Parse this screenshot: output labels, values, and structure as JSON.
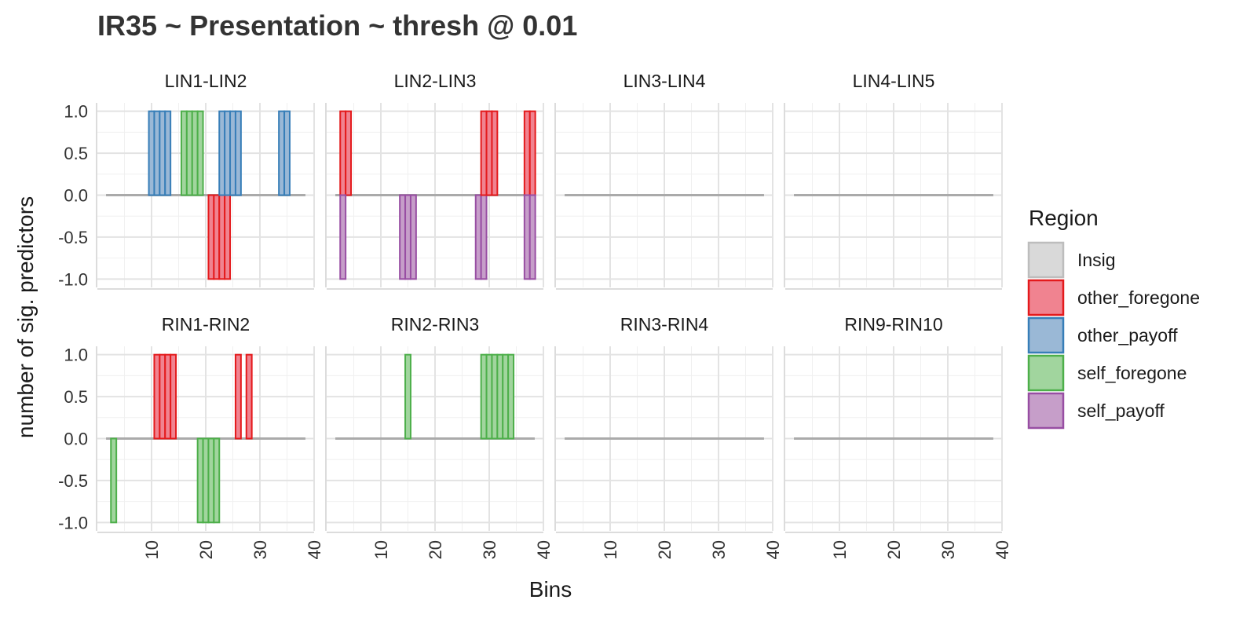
{
  "chart_data": {
    "type": "bar",
    "title": "IR35 ~ Presentation ~ thresh @ 0.01",
    "xlabel": "Bins",
    "ylabel": "number of sig. predictors",
    "xlim": [
      0,
      40
    ],
    "ylim": [
      -1.1,
      1.1
    ],
    "xticks": [
      "10",
      "20",
      "30",
      "40"
    ],
    "xtick_values": [
      10,
      20,
      30,
      40
    ],
    "yticks": [
      "1.0",
      "0.5",
      "0.0",
      "-0.5",
      "-1.0"
    ],
    "ytick_values": [
      1,
      0.5,
      0,
      -0.5,
      -1
    ],
    "bins": [
      2,
      38
    ],
    "grid": true,
    "facet_layout": "2 rows x 4 columns",
    "legend": {
      "title": "Region",
      "position": "right",
      "items": [
        {
          "label": "Insig",
          "key": "Insig",
          "fill": "#d9d9d9",
          "stroke": "#bdbdbd"
        },
        {
          "label": "other_foregone",
          "key": "other_foregone",
          "fill": "#f08390",
          "stroke": "#e41a1c"
        },
        {
          "label": "other_payoff",
          "key": "other_payoff",
          "fill": "#9ab8d6",
          "stroke": "#377eb8"
        },
        {
          "label": "self_foregone",
          "key": "self_foregone",
          "fill": "#a1d59e",
          "stroke": "#4daf4a"
        },
        {
          "label": "self_payoff",
          "key": "self_payoff",
          "fill": "#c69ec9",
          "stroke": "#984ea3"
        }
      ]
    },
    "facets": [
      {
        "label": "LIN1-LIN2",
        "series": [
          {
            "region": "other_payoff",
            "value": 1,
            "bins": [
              10,
              11,
              12,
              13
            ]
          },
          {
            "region": "self_foregone",
            "value": 1,
            "bins": [
              16,
              17,
              18,
              19
            ]
          },
          {
            "region": "other_foregone",
            "value": -1,
            "bins": [
              21,
              22,
              23,
              24
            ]
          },
          {
            "region": "other_payoff",
            "value": 1,
            "bins": [
              23,
              24,
              25,
              26
            ]
          },
          {
            "region": "other_payoff",
            "value": 1,
            "bins": [
              34,
              35
            ]
          }
        ]
      },
      {
        "label": "LIN2-LIN3",
        "series": [
          {
            "region": "other_foregone",
            "value": 1,
            "bins": [
              3,
              4
            ]
          },
          {
            "region": "self_payoff",
            "value": -1,
            "bins": [
              3
            ]
          },
          {
            "region": "self_payoff",
            "value": -1,
            "bins": [
              14,
              15,
              16
            ]
          },
          {
            "region": "self_payoff",
            "value": -1,
            "bins": [
              28,
              29
            ]
          },
          {
            "region": "other_foregone",
            "value": 1,
            "bins": [
              29,
              30,
              31
            ]
          },
          {
            "region": "other_foregone",
            "value": 1,
            "bins": [
              37,
              38
            ]
          },
          {
            "region": "self_payoff",
            "value": -1,
            "bins": [
              37,
              38
            ]
          }
        ]
      },
      {
        "label": "LIN3-LIN4",
        "series": []
      },
      {
        "label": "LIN4-LIN5",
        "series": []
      },
      {
        "label": "RIN1-RIN2",
        "series": [
          {
            "region": "self_foregone",
            "value": -1,
            "bins": [
              3
            ]
          },
          {
            "region": "other_foregone",
            "value": 1,
            "bins": [
              11,
              12,
              13,
              14
            ]
          },
          {
            "region": "self_foregone",
            "value": -1,
            "bins": [
              19,
              20,
              21,
              22
            ]
          },
          {
            "region": "other_foregone",
            "value": 1,
            "bins": [
              26,
              28
            ]
          }
        ]
      },
      {
        "label": "RIN2-RIN3",
        "series": [
          {
            "region": "self_foregone",
            "value": 1,
            "bins": [
              15
            ]
          },
          {
            "region": "self_foregone",
            "value": 1,
            "bins": [
              29,
              30,
              31,
              32,
              33,
              34
            ]
          }
        ]
      },
      {
        "label": "RIN3-RIN4",
        "series": []
      },
      {
        "label": "RIN9-RIN10",
        "series": []
      }
    ]
  }
}
